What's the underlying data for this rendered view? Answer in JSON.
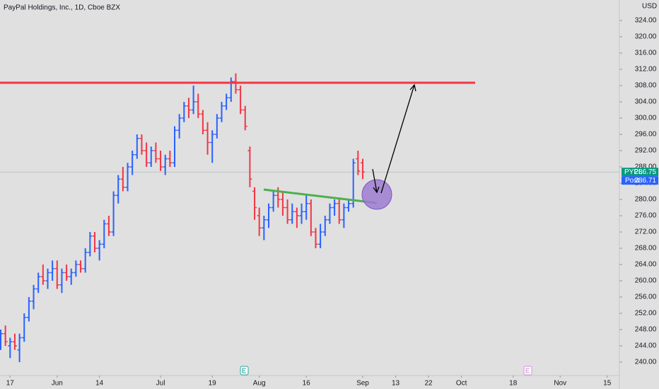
{
  "chart_data": {
    "type": "ohlc",
    "title": "PayPal Holdings, Inc., 1D, Cboe BZX",
    "currency": "USD",
    "symbol": "PYPL",
    "last": {
      "value": 286.75,
      "label": "286.75"
    },
    "post_label": "Post",
    "post": {
      "value": 286.71,
      "label": "286.71"
    },
    "up_color": "#2962ff",
    "down_color": "#f23645",
    "open": [
      246,
      247,
      244,
      245,
      243,
      246,
      251,
      255,
      258,
      261,
      260,
      262,
      263,
      259,
      262,
      261,
      262,
      264,
      263,
      267,
      271,
      268,
      269,
      274,
      272,
      281,
      285,
      283,
      288,
      291,
      295,
      292,
      289,
      292,
      290,
      288,
      290,
      289,
      297,
      300,
      303,
      302,
      304,
      301,
      297,
      294,
      296,
      300,
      303,
      305,
      309,
      307,
      302,
      292,
      282,
      276,
      273,
      275,
      278,
      281,
      280,
      278,
      275,
      277,
      276,
      277,
      279,
      272,
      269,
      272,
      275,
      278,
      279,
      275,
      278,
      279,
      290,
      289
    ],
    "high": [
      248,
      249,
      246,
      247,
      247,
      252,
      256,
      259,
      262,
      264,
      263,
      265,
      265,
      263,
      264,
      263,
      265,
      265,
      268,
      272,
      272,
      270,
      275,
      276,
      282,
      286,
      288,
      289,
      292,
      296,
      296,
      294,
      293,
      294,
      292,
      291,
      292,
      298,
      301,
      304,
      305,
      308,
      306,
      302,
      299,
      297,
      301,
      304,
      306,
      310,
      311,
      308,
      303,
      293,
      283,
      278,
      276,
      279,
      282,
      283,
      282,
      280,
      279,
      278,
      279,
      281,
      280,
      273,
      274,
      276,
      279,
      280,
      280,
      279,
      280,
      290,
      292,
      290
    ],
    "low": [
      243,
      244,
      241,
      243,
      240,
      245,
      250,
      253,
      257,
      259,
      258,
      260,
      258,
      257,
      260,
      259,
      261,
      262,
      262,
      266,
      267,
      265,
      268,
      271,
      271,
      279,
      282,
      282,
      286,
      290,
      291,
      288,
      288,
      289,
      287,
      286,
      288,
      288,
      295,
      299,
      300,
      301,
      300,
      296,
      291,
      289,
      295,
      299,
      302,
      304,
      306,
      301,
      297,
      283,
      275,
      271,
      270,
      273,
      277,
      278,
      276,
      274,
      274,
      273,
      274,
      275,
      271,
      268,
      268,
      271,
      274,
      276,
      274,
      273,
      277,
      278,
      286,
      285
    ],
    "close": [
      247,
      245,
      245,
      244,
      246,
      251,
      255,
      258,
      261,
      260,
      262,
      263,
      259,
      262,
      261,
      262,
      264,
      263,
      267,
      271,
      268,
      269,
      274,
      272,
      281,
      285,
      283,
      288,
      291,
      295,
      292,
      289,
      292,
      290,
      288,
      290,
      289,
      297,
      300,
      303,
      302,
      304,
      301,
      297,
      294,
      296,
      300,
      303,
      305,
      309,
      307,
      302,
      298,
      285,
      278,
      273,
      275,
      278,
      281,
      280,
      278,
      275,
      277,
      276,
      277,
      279,
      272,
      269,
      272,
      275,
      278,
      279,
      275,
      278,
      279,
      289,
      287,
      286.75
    ],
    "xlim": [
      -0.15,
      131.6
    ],
    "xticks": [
      {
        "value": 2,
        "label": "17"
      },
      {
        "value": 12,
        "label": "Jun"
      },
      {
        "value": 21,
        "label": "14"
      },
      {
        "value": 34,
        "label": "Jul"
      },
      {
        "value": 45,
        "label": "19"
      },
      {
        "value": 55,
        "label": "Aug"
      },
      {
        "value": 65,
        "label": "16"
      },
      {
        "value": 77,
        "label": "Sep"
      },
      {
        "value": 84,
        "label": "13"
      },
      {
        "value": 91,
        "label": "22"
      },
      {
        "value": 98,
        "label": "Oct"
      },
      {
        "value": 109,
        "label": "18"
      },
      {
        "value": 119,
        "label": "Nov"
      },
      {
        "value": 129,
        "label": "15"
      }
    ],
    "ylim": [
      236.87,
      329.04
    ],
    "yticks": [
      {
        "value": 240,
        "label": "240.00"
      },
      {
        "value": 244,
        "label": "244.00"
      },
      {
        "value": 248,
        "label": "248.00"
      },
      {
        "value": 252,
        "label": "252.00"
      },
      {
        "value": 256,
        "label": "256.00"
      },
      {
        "value": 260,
        "label": "260.00"
      },
      {
        "value": 264,
        "label": "264.00"
      },
      {
        "value": 268,
        "label": "268.00"
      },
      {
        "value": 272,
        "label": "272.00"
      },
      {
        "value": 276,
        "label": "276.00"
      },
      {
        "value": 280,
        "label": "280.00"
      },
      {
        "value": 284,
        "label": "284.00"
      },
      {
        "value": 288,
        "label": "288.00"
      },
      {
        "value": 292,
        "label": "292.00"
      },
      {
        "value": 296,
        "label": "296.00"
      },
      {
        "value": 300,
        "label": "300.00"
      },
      {
        "value": 304,
        "label": "304.00"
      },
      {
        "value": 308,
        "label": "308.00"
      },
      {
        "value": 312,
        "label": "312.00"
      },
      {
        "value": 316,
        "label": "316.00"
      },
      {
        "value": 320,
        "label": "320.00"
      },
      {
        "value": 324,
        "label": "324.00"
      }
    ]
  }
}
